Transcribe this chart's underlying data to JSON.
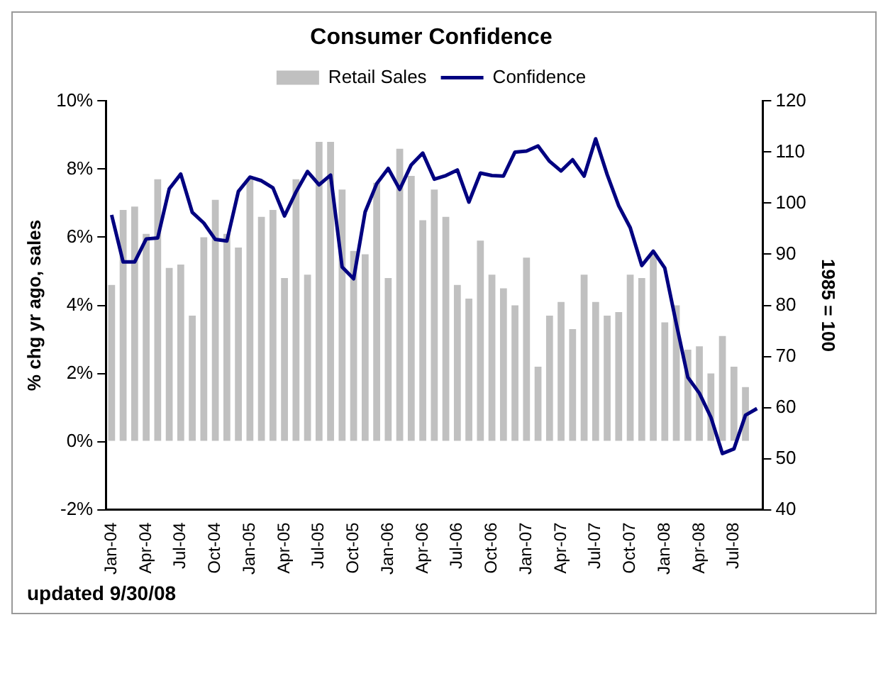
{
  "chart_data": {
    "type": "bar",
    "title": "Consumer Confidence",
    "ylabel": "% chg yr ago, sales",
    "y2label": "1985 = 100",
    "categories": [
      "Jan-04",
      null,
      null,
      "Apr-04",
      null,
      null,
      "Jul-04",
      null,
      null,
      "Oct-04",
      null,
      null,
      "Jan-05",
      null,
      null,
      "Apr-05",
      null,
      null,
      "Jul-05",
      null,
      null,
      "Oct-05",
      null,
      null,
      "Jan-06",
      null,
      null,
      "Apr-06",
      null,
      null,
      "Jul-06",
      null,
      null,
      "Oct-06",
      null,
      null,
      "Jan-07",
      null,
      null,
      "Apr-07",
      null,
      null,
      "Jul-07",
      null,
      null,
      "Oct-07",
      null,
      null,
      "Jan-08",
      null,
      null,
      "Apr-08",
      null,
      null,
      "Jul-08",
      null,
      null
    ],
    "series": [
      {
        "name": "Retail Sales",
        "color": "#c0c0c0",
        "values": [
          4.6,
          6.8,
          6.9,
          6.1,
          7.7,
          5.1,
          5.2,
          3.7,
          6.0,
          7.1,
          6.1,
          5.7,
          7.7,
          6.6,
          6.8,
          4.8,
          7.7,
          4.9,
          8.8,
          8.8,
          7.4,
          5.6,
          5.5,
          7.6,
          4.8,
          8.6,
          7.8,
          6.5,
          7.4,
          6.6,
          4.6,
          4.2,
          5.9,
          4.9,
          4.5,
          4.0,
          5.4,
          2.2,
          3.7,
          4.1,
          3.3,
          4.9,
          4.1,
          3.7,
          3.8,
          4.9,
          4.8,
          5.5,
          3.5,
          4.0,
          2.7,
          2.8,
          2.0,
          3.1,
          2.2,
          1.6,
          null
        ]
      },
      {
        "name": "Confidence",
        "type": "line",
        "axis": "y2",
        "color": "#000080",
        "values": [
          97.7,
          88.5,
          88.5,
          93.0,
          93.2,
          102.8,
          105.7,
          98.2,
          96.1,
          92.9,
          92.6,
          102.3,
          105.1,
          104.4,
          103.0,
          97.5,
          102.2,
          106.2,
          103.6,
          105.5,
          87.5,
          85.2,
          98.3,
          103.8,
          106.8,
          102.7,
          107.5,
          109.8,
          104.7,
          105.4,
          106.5,
          100.2,
          105.9,
          105.4,
          105.3,
          110.0,
          110.2,
          111.2,
          108.2,
          106.3,
          108.5,
          105.3,
          112.6,
          105.6,
          99.5,
          95.2,
          87.8,
          90.6,
          87.3,
          76.4,
          65.9,
          62.8,
          58.1,
          51.0,
          51.9,
          58.5,
          59.8
        ]
      }
    ],
    "ylim": [
      -2,
      10
    ],
    "yticks": [
      {
        "value": -2,
        "label": "-2%"
      },
      {
        "value": 0,
        "label": "0%"
      },
      {
        "value": 2,
        "label": "2%"
      },
      {
        "value": 4,
        "label": "4%"
      },
      {
        "value": 6,
        "label": "6%"
      },
      {
        "value": 8,
        "label": "8%"
      },
      {
        "value": 10,
        "label": "10%"
      }
    ],
    "y2lim": [
      40,
      120
    ],
    "y2ticks": [
      40,
      50,
      60,
      70,
      80,
      90,
      100,
      110,
      120
    ],
    "grid": false,
    "legend": "top",
    "marker": "none",
    "line_style": "solid",
    "annotations": [
      "updated 9/30/08"
    ]
  }
}
